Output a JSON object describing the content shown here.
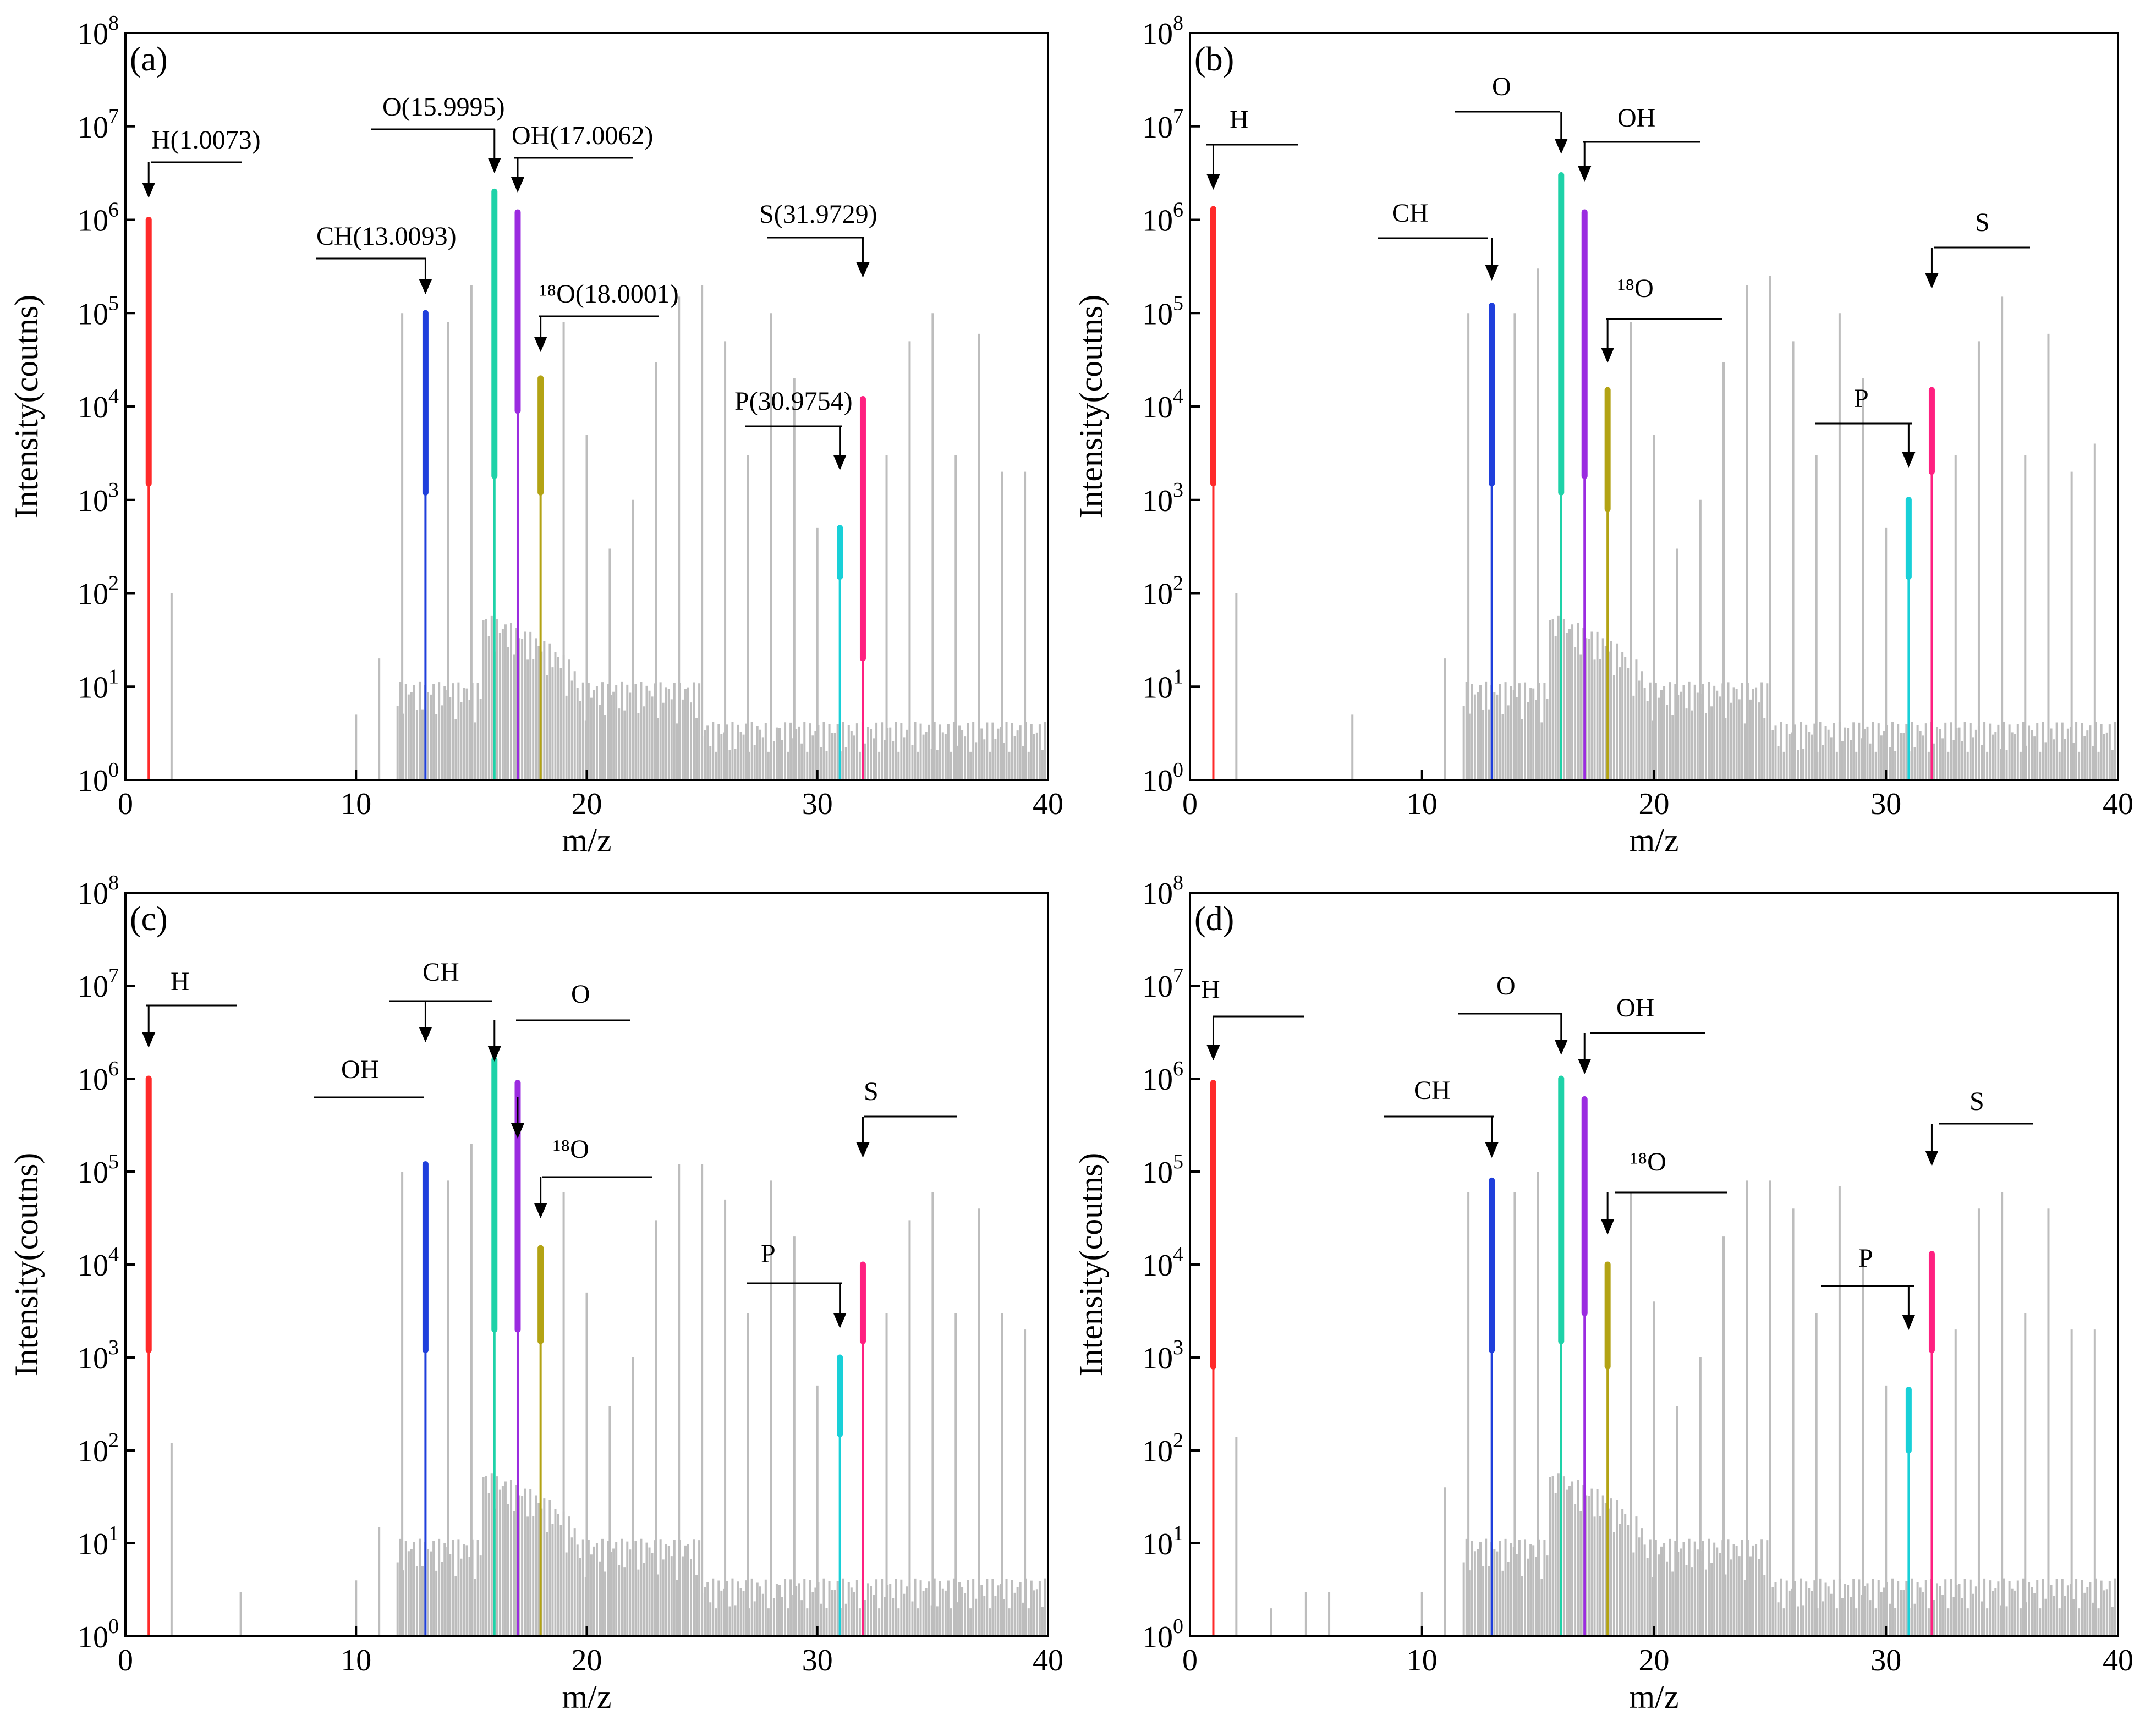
{
  "chart_data": [
    {
      "type": "bar",
      "panel": "(a)",
      "xlabel": "m/z",
      "ylabel": "Intensity(coutns)",
      "xlim": [
        0,
        40
      ],
      "ylim": [
        1,
        100000000
      ],
      "yscale": "log",
      "xticks": [
        "0",
        "10",
        "20",
        "30",
        "40"
      ],
      "yticks": [
        "10^0",
        "10^1",
        "10^2",
        "10^3",
        "10^4",
        "10^5",
        "10^6",
        "10^7",
        "10^8"
      ],
      "background_color": "#bdbdbd",
      "background_peaks": [
        {
          "x": 2.0,
          "y": 100
        },
        {
          "x": 10.0,
          "y": 5
        },
        {
          "x": 11.0,
          "y": 20
        },
        {
          "x": 12.0,
          "y": 100000
        },
        {
          "x": 14.0,
          "y": 80000
        },
        {
          "x": 15.0,
          "y": 200000
        },
        {
          "x": 19.0,
          "y": 80000
        },
        {
          "x": 20.0,
          "y": 5000
        },
        {
          "x": 21.0,
          "y": 300
        },
        {
          "x": 22.0,
          "y": 1000
        },
        {
          "x": 23.0,
          "y": 30000
        },
        {
          "x": 24.0,
          "y": 150000
        },
        {
          "x": 25.0,
          "y": 200000
        },
        {
          "x": 26.0,
          "y": 50000
        },
        {
          "x": 27.0,
          "y": 3000
        },
        {
          "x": 28.0,
          "y": 100000
        },
        {
          "x": 29.0,
          "y": 20000
        },
        {
          "x": 30.0,
          "y": 500
        },
        {
          "x": 33.0,
          "y": 3000
        },
        {
          "x": 34.0,
          "y": 50000
        },
        {
          "x": 35.0,
          "y": 100000
        },
        {
          "x": 36.0,
          "y": 3000
        },
        {
          "x": 37.0,
          "y": 60000
        },
        {
          "x": 38.0,
          "y": 2000
        },
        {
          "x": 39.0,
          "y": 2000
        },
        {
          "x": 40.0,
          "y": 1000
        }
      ],
      "peaks": [
        {
          "label": "H(1.0073)",
          "x": 1.0073,
          "top": 1000000,
          "bottom": 1500,
          "color": "#ff2a2a"
        },
        {
          "label": "CH(13.0093)",
          "x": 13.0093,
          "top": 100000,
          "bottom": 1200,
          "color": "#1f3fdc"
        },
        {
          "label": "O(15.9995)",
          "x": 15.9995,
          "top": 2000000,
          "bottom": 1800,
          "color": "#1ed2a8"
        },
        {
          "label": "OH(17.0062)",
          "x": 17.0062,
          "top": 1200000,
          "bottom": 9000,
          "color": "#9b2be0"
        },
        {
          "label": "¹⁸O(18.0001)",
          "x": 18.0001,
          "top": 20000,
          "bottom": 1200,
          "color": "#b3a314"
        },
        {
          "label": "P(30.9754)",
          "x": 30.9754,
          "top": 500,
          "bottom": 150,
          "color": "#18d0d8"
        },
        {
          "label": "S(31.9729)",
          "x": 31.9729,
          "top": 12000,
          "bottom": 20,
          "color": "#ff2080"
        }
      ]
    },
    {
      "type": "bar",
      "panel": "(b)",
      "xlabel": "m/z",
      "ylabel": "Intensity(coutns)",
      "xlim": [
        0,
        40
      ],
      "ylim": [
        1,
        100000000
      ],
      "yscale": "log",
      "xticks": [
        "0",
        "10",
        "20",
        "30",
        "40"
      ],
      "yticks": [
        "10^0",
        "10^1",
        "10^2",
        "10^3",
        "10^4",
        "10^5",
        "10^6",
        "10^7",
        "10^8"
      ],
      "background_color": "#bdbdbd",
      "background_peaks": [
        {
          "x": 2.0,
          "y": 100
        },
        {
          "x": 7.0,
          "y": 5
        },
        {
          "x": 11.0,
          "y": 20
        },
        {
          "x": 12.0,
          "y": 100000
        },
        {
          "x": 14.0,
          "y": 100000
        },
        {
          "x": 15.0,
          "y": 300000
        },
        {
          "x": 19.0,
          "y": 80000
        },
        {
          "x": 20.0,
          "y": 5000
        },
        {
          "x": 21.0,
          "y": 300
        },
        {
          "x": 22.0,
          "y": 1000
        },
        {
          "x": 23.0,
          "y": 30000
        },
        {
          "x": 24.0,
          "y": 200000
        },
        {
          "x": 25.0,
          "y": 250000
        },
        {
          "x": 26.0,
          "y": 50000
        },
        {
          "x": 27.0,
          "y": 3000
        },
        {
          "x": 28.0,
          "y": 100000
        },
        {
          "x": 29.0,
          "y": 20000
        },
        {
          "x": 30.0,
          "y": 500
        },
        {
          "x": 33.0,
          "y": 3000
        },
        {
          "x": 34.0,
          "y": 50000
        },
        {
          "x": 35.0,
          "y": 150000
        },
        {
          "x": 36.0,
          "y": 3000
        },
        {
          "x": 37.0,
          "y": 60000
        },
        {
          "x": 38.0,
          "y": 2000
        },
        {
          "x": 39.0,
          "y": 4000
        },
        {
          "x": 40.0,
          "y": 1000
        }
      ],
      "peaks": [
        {
          "label": "H",
          "x": 1.0073,
          "top": 1300000,
          "bottom": 1500,
          "color": "#ff2a2a"
        },
        {
          "label": "CH",
          "x": 13.0093,
          "top": 120000,
          "bottom": 1500,
          "color": "#1f3fdc"
        },
        {
          "label": "O",
          "x": 15.9995,
          "top": 3000000,
          "bottom": 1200,
          "color": "#1ed2a8"
        },
        {
          "label": "OH",
          "x": 17.0062,
          "top": 1200000,
          "bottom": 1800,
          "color": "#9b2be0"
        },
        {
          "label": "¹⁸O",
          "x": 18.0001,
          "top": 15000,
          "bottom": 800,
          "color": "#b3a314"
        },
        {
          "label": "P",
          "x": 30.9754,
          "top": 1000,
          "bottom": 150,
          "color": "#18d0d8"
        },
        {
          "label": "S",
          "x": 31.9729,
          "top": 15000,
          "bottom": 2000,
          "color": "#ff2080"
        }
      ]
    },
    {
      "type": "bar",
      "panel": "(c)",
      "xlabel": "m/z",
      "ylabel": "Intensity(coutns)",
      "xlim": [
        0,
        40
      ],
      "ylim": [
        1,
        100000000
      ],
      "yscale": "log",
      "xticks": [
        "0",
        "10",
        "20",
        "30",
        "40"
      ],
      "yticks": [
        "10^0",
        "10^1",
        "10^2",
        "10^3",
        "10^4",
        "10^5",
        "10^6",
        "10^7",
        "10^8"
      ],
      "background_color": "#bdbdbd",
      "background_peaks": [
        {
          "x": 2.0,
          "y": 120
        },
        {
          "x": 5.0,
          "y": 3
        },
        {
          "x": 10.0,
          "y": 4
        },
        {
          "x": 11.0,
          "y": 15
        },
        {
          "x": 12.0,
          "y": 100000
        },
        {
          "x": 14.0,
          "y": 80000
        },
        {
          "x": 15.0,
          "y": 200000
        },
        {
          "x": 19.0,
          "y": 60000
        },
        {
          "x": 20.0,
          "y": 5000
        },
        {
          "x": 21.0,
          "y": 300
        },
        {
          "x": 22.0,
          "y": 1000
        },
        {
          "x": 23.0,
          "y": 30000
        },
        {
          "x": 24.0,
          "y": 120000
        },
        {
          "x": 25.0,
          "y": 120000
        },
        {
          "x": 26.0,
          "y": 50000
        },
        {
          "x": 27.0,
          "y": 3000
        },
        {
          "x": 28.0,
          "y": 80000
        },
        {
          "x": 29.0,
          "y": 20000
        },
        {
          "x": 30.0,
          "y": 500
        },
        {
          "x": 33.0,
          "y": 3000
        },
        {
          "x": 34.0,
          "y": 30000
        },
        {
          "x": 35.0,
          "y": 60000
        },
        {
          "x": 36.0,
          "y": 3000
        },
        {
          "x": 37.0,
          "y": 40000
        },
        {
          "x": 38.0,
          "y": 3000
        },
        {
          "x": 39.0,
          "y": 2000
        },
        {
          "x": 40.0,
          "y": 1000
        }
      ],
      "peaks": [
        {
          "label": "H",
          "x": 1.0073,
          "top": 1000000,
          "bottom": 1200,
          "color": "#ff2a2a"
        },
        {
          "label": "CH",
          "x": 13.0093,
          "top": 120000,
          "bottom": 1200,
          "color": "#1f3fdc"
        },
        {
          "label": "O",
          "x": 15.9995,
          "top": 1600000,
          "bottom": 2000,
          "color": "#1ed2a8"
        },
        {
          "label": "OH",
          "x": 17.0062,
          "top": 900000,
          "bottom": 2000,
          "color": "#9b2be0"
        },
        {
          "label": "¹⁸O",
          "x": 18.0001,
          "top": 15000,
          "bottom": 1500,
          "color": "#b3a314"
        },
        {
          "label": "P",
          "x": 30.9754,
          "top": 1000,
          "bottom": 150,
          "color": "#18d0d8"
        },
        {
          "label": "S",
          "x": 31.9729,
          "top": 10000,
          "bottom": 1500,
          "color": "#ff2080"
        }
      ]
    },
    {
      "type": "bar",
      "panel": "(d)",
      "xlabel": "m/z",
      "ylabel": "Intensity(coutns)",
      "xlim": [
        0,
        40
      ],
      "ylim": [
        1,
        100000000
      ],
      "yscale": "log",
      "xticks": [
        "0",
        "10",
        "20",
        "30",
        "40"
      ],
      "yticks": [
        "10^0",
        "10^1",
        "10^2",
        "10^3",
        "10^4",
        "10^5",
        "10^6",
        "10^7",
        "10^8"
      ],
      "background_color": "#bdbdbd",
      "background_peaks": [
        {
          "x": 2.0,
          "y": 140
        },
        {
          "x": 3.5,
          "y": 2
        },
        {
          "x": 5.0,
          "y": 3
        },
        {
          "x": 6.0,
          "y": 3
        },
        {
          "x": 10.0,
          "y": 3
        },
        {
          "x": 11.0,
          "y": 40
        },
        {
          "x": 12.0,
          "y": 60000
        },
        {
          "x": 14.0,
          "y": 60000
        },
        {
          "x": 15.0,
          "y": 100000
        },
        {
          "x": 19.0,
          "y": 60000
        },
        {
          "x": 20.0,
          "y": 4000
        },
        {
          "x": 21.0,
          "y": 300
        },
        {
          "x": 22.0,
          "y": 1000
        },
        {
          "x": 23.0,
          "y": 20000
        },
        {
          "x": 24.0,
          "y": 80000
        },
        {
          "x": 25.0,
          "y": 80000
        },
        {
          "x": 26.0,
          "y": 40000
        },
        {
          "x": 27.0,
          "y": 3000
        },
        {
          "x": 28.0,
          "y": 70000
        },
        {
          "x": 29.0,
          "y": 10000
        },
        {
          "x": 30.0,
          "y": 500
        },
        {
          "x": 33.0,
          "y": 2000
        },
        {
          "x": 34.0,
          "y": 40000
        },
        {
          "x": 35.0,
          "y": 60000
        },
        {
          "x": 36.0,
          "y": 3000
        },
        {
          "x": 37.0,
          "y": 40000
        },
        {
          "x": 38.0,
          "y": 2000
        },
        {
          "x": 39.0,
          "y": 2000
        },
        {
          "x": 40.0,
          "y": 1000
        }
      ],
      "peaks": [
        {
          "label": "H",
          "x": 1.0073,
          "top": 900000,
          "bottom": 800,
          "color": "#ff2a2a"
        },
        {
          "label": "CH",
          "x": 13.0093,
          "top": 80000,
          "bottom": 1200,
          "color": "#1f3fdc"
        },
        {
          "label": "O",
          "x": 15.9995,
          "top": 1000000,
          "bottom": 1500,
          "color": "#1ed2a8"
        },
        {
          "label": "OH",
          "x": 17.0062,
          "top": 600000,
          "bottom": 3000,
          "color": "#9b2be0"
        },
        {
          "label": "¹⁸O",
          "x": 18.0001,
          "top": 10000,
          "bottom": 800,
          "color": "#b3a314"
        },
        {
          "label": "P",
          "x": 30.9754,
          "top": 450,
          "bottom": 100,
          "color": "#18d0d8"
        },
        {
          "label": "S",
          "x": 31.9729,
          "top": 13000,
          "bottom": 1200,
          "color": "#ff2080"
        }
      ]
    }
  ]
}
